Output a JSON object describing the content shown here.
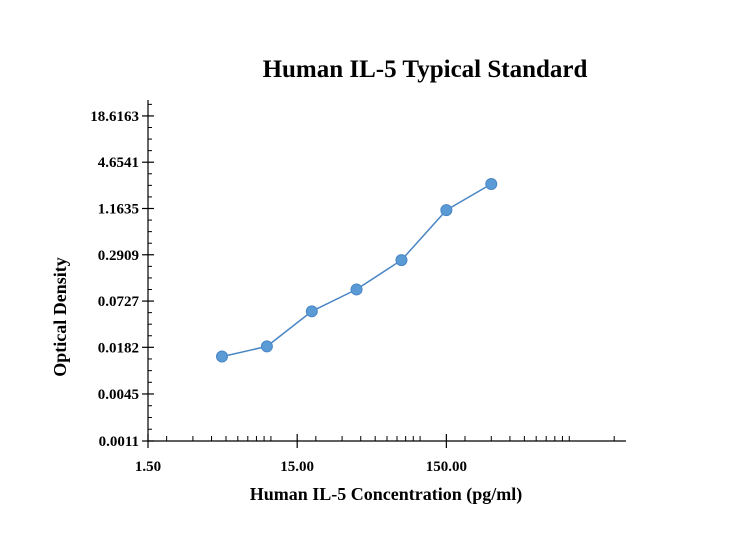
{
  "chart_data": {
    "type": "line",
    "title": "Human IL-5 Typical Standard",
    "xlabel": "Human IL-5 Concentration (pg/ml)",
    "ylabel": "Optical Density",
    "x_scale": "log",
    "y_scale": "log",
    "xlim": [
      1.5,
      2400
    ],
    "ylim": [
      0.0011,
      30
    ],
    "x_tick_labels": [
      {
        "value": 1.5,
        "label": "1.50"
      },
      {
        "value": 15,
        "label": "15.00"
      },
      {
        "value": 150,
        "label": "150.00"
      }
    ],
    "y_tick_labels": [
      {
        "value": 0.0011,
        "label": "0.0011"
      },
      {
        "value": 0.0045,
        "label": "0.0045"
      },
      {
        "value": 0.0182,
        "label": "0.0182"
      },
      {
        "value": 0.0727,
        "label": "0.0727"
      },
      {
        "value": 0.2909,
        "label": "0.2909"
      },
      {
        "value": 1.1635,
        "label": "1.1635"
      },
      {
        "value": 4.6541,
        "label": "4.6541"
      },
      {
        "value": 18.6163,
        "label": "18.6163"
      }
    ],
    "grid": false,
    "series": [
      {
        "x": [
          4.7,
          9.4,
          18.8,
          37.5,
          75,
          150,
          300
        ],
        "y": [
          0.0138,
          0.0187,
          0.0535,
          0.103,
          0.248,
          1.11,
          2.42
        ]
      }
    ],
    "colors": {
      "series": "#5b9bd5",
      "line": "#4a86c5",
      "axis": "#000000"
    }
  }
}
